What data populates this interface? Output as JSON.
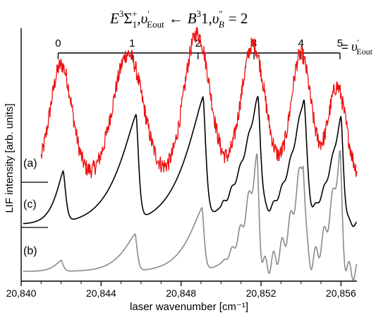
{
  "chart_data": {
    "type": "line",
    "title": "E³Σ₁⁺, υ′Eout ← B³1, υ″B = 2",
    "title_parts": {
      "E": "E",
      "three_a": "3",
      "Sigma": "Σ",
      "one_a": "1",
      "plus": "+",
      "comma1": ",",
      "upsilon1": "υ",
      "prime1": "′",
      "Eout1": "Eout",
      "arrow": "←",
      "B": "B",
      "three_b": "3",
      "one_b": "1",
      "comma2": ",",
      "upsilon2": "υ",
      "dprime": "″",
      "Bsub": "B",
      "equals": "= 2"
    },
    "xlabel": "laser wavenumber [cm⁻¹]",
    "ylabel": "LIF intensity [arb. units]",
    "xlim": [
      20840,
      20856.8
    ],
    "xticks": [
      {
        "value": 20840,
        "label": "20,840"
      },
      {
        "value": 20844,
        "label": "20,844"
      },
      {
        "value": 20848,
        "label": "20,848"
      },
      {
        "value": 20852,
        "label": "20,852"
      },
      {
        "value": 20856,
        "label": "20,856"
      }
    ],
    "top_axis": {
      "label": "υ′Eout",
      "label_parts": {
        "equals": "=",
        "upsilon": "υ",
        "prime": "′",
        "sub": "Eout"
      },
      "ticks": [
        {
          "value": 20841.85,
          "label": "0"
        },
        {
          "value": 20845.55,
          "label": "1"
        },
        {
          "value": 20848.85,
          "label": "2"
        },
        {
          "value": 20851.65,
          "label": "3"
        },
        {
          "value": 20854.0,
          "label": "4"
        },
        {
          "value": 20855.95,
          "label": "5"
        }
      ]
    },
    "grid": false,
    "legend": "none",
    "series": [
      {
        "name": "(a)",
        "color": "#ee1111",
        "noise": 0.045,
        "baseline": 0.02,
        "peaks": [
          {
            "x": 20842.0,
            "height": 0.62,
            "shape": "gauss",
            "width": 0.55,
            "width_right": 0.55
          },
          {
            "x": 20845.35,
            "height": 0.68,
            "shape": "gauss",
            "width": 0.75,
            "width_right": 0.75
          },
          {
            "x": 20848.8,
            "height": 0.79,
            "shape": "gauss",
            "width": 0.65,
            "width_right": 0.65
          },
          {
            "x": 20851.6,
            "height": 0.73,
            "shape": "gauss",
            "width": 0.6,
            "width_right": 0.6
          },
          {
            "x": 20854.0,
            "height": 0.68,
            "shape": "gauss",
            "width": 0.5,
            "width_right": 0.5
          },
          {
            "x": 20855.8,
            "height": 0.5,
            "shape": "gauss",
            "width": 0.45,
            "width_right": 0.45
          }
        ]
      },
      {
        "name": "(c)",
        "color": "#000000",
        "noise": 0.0,
        "baseline": 0.02,
        "peaks": [
          {
            "x": 20842.1,
            "height": 0.3,
            "shape": "edge",
            "width": 0.55,
            "width_right": 0.18
          },
          {
            "x": 20845.75,
            "height": 0.62,
            "shape": "edge",
            "width": 1.25,
            "width_right": 0.18
          },
          {
            "x": 20849.1,
            "height": 0.72,
            "shape": "edge",
            "width": 1.3,
            "width_right": 0.2
          },
          {
            "x": 20851.85,
            "height": 0.71,
            "shape": "edge",
            "width": 1.1,
            "width_right": 0.2
          },
          {
            "x": 20854.15,
            "height": 0.71,
            "shape": "edge",
            "width": 0.95,
            "width_right": 0.2
          },
          {
            "x": 20856.0,
            "height": 0.62,
            "shape": "edge",
            "width": 0.8,
            "width_right": 0.18
          }
        ]
      },
      {
        "name": "(b)",
        "color": "#8a8a8a",
        "noise": 0.0,
        "baseline": 0.015,
        "peaks": [
          {
            "x": 20842.0,
            "height": 0.06,
            "shape": "edge",
            "width": 0.45,
            "width_right": 0.15
          },
          {
            "x": 20845.7,
            "height": 0.2,
            "shape": "edge",
            "width": 0.9,
            "width_right": 0.15
          },
          {
            "x": 20849.05,
            "height": 0.34,
            "shape": "edge",
            "width": 1.0,
            "width_right": 0.15
          },
          {
            "x": 20851.8,
            "height": 0.58,
            "shape": "edge",
            "width": 0.85,
            "width_right": 0.15
          },
          {
            "x": 20854.1,
            "height": 0.6,
            "shape": "edge",
            "width": 0.75,
            "width_right": 0.15
          },
          {
            "x": 20855.95,
            "height": 0.62,
            "shape": "edge",
            "width": 0.7,
            "width_right": 0.15
          }
        ]
      }
    ],
    "annotations": {
      "a": "(a)",
      "c": "(c)",
      "b": "(b)"
    }
  }
}
